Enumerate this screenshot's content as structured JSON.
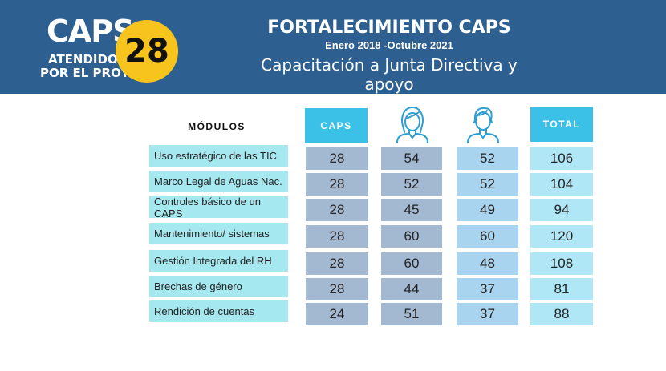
{
  "header": {
    "caps_label": "CAPS",
    "attended_line1": "ATENDIDOS",
    "attended_line2": "POR EL PROYECTO",
    "count": "28",
    "title": "FORTALECIMIENTO CAPS",
    "date_range": "Enero 2018 -Octubre 2021",
    "subtitle": "Capacitación a Junta Directiva y apoyo"
  },
  "table": {
    "columns": {
      "modulos": "MÓDULOS",
      "caps": "CAPS",
      "women_icon": "woman-icon",
      "men_icon": "man-icon",
      "total": "TOTAL"
    },
    "rows": [
      {
        "label": "Uso estratégico de las TIC",
        "caps": "28",
        "women": "54",
        "men": "52",
        "total": "106"
      },
      {
        "label": "Marco Legal de Aguas Nac.",
        "caps": "28",
        "women": "52",
        "men": "52",
        "total": "104"
      },
      {
        "label": "Controles básico de un CAPS",
        "caps": "28",
        "women": "45",
        "men": "49",
        "total": "94"
      },
      {
        "label": "Mantenimiento/ sistemas",
        "caps": "28",
        "women": "60",
        "men": "60",
        "total": "120"
      },
      {
        "label": "Gestión Integrada del RH",
        "caps": "28",
        "women": "60",
        "men": "48",
        "total": "108"
      },
      {
        "label": "Brechas de género",
        "caps": "28",
        "women": "44",
        "men": "37",
        "total": "81"
      },
      {
        "label": "Rendición de cuentas",
        "caps": "24",
        "women": "51",
        "men": "37",
        "total": "88"
      }
    ]
  },
  "colors": {
    "header_bg": "#2d5f91",
    "badge": "#f7c41e",
    "column_head": "#3bc1e8",
    "label_cell": "#a5e8f0",
    "caps_cell": "#a3b9d1",
    "women_cell": "#a3b9d1",
    "men_cell": "#a8d4ef",
    "total_cell": "#b0e7f6"
  }
}
